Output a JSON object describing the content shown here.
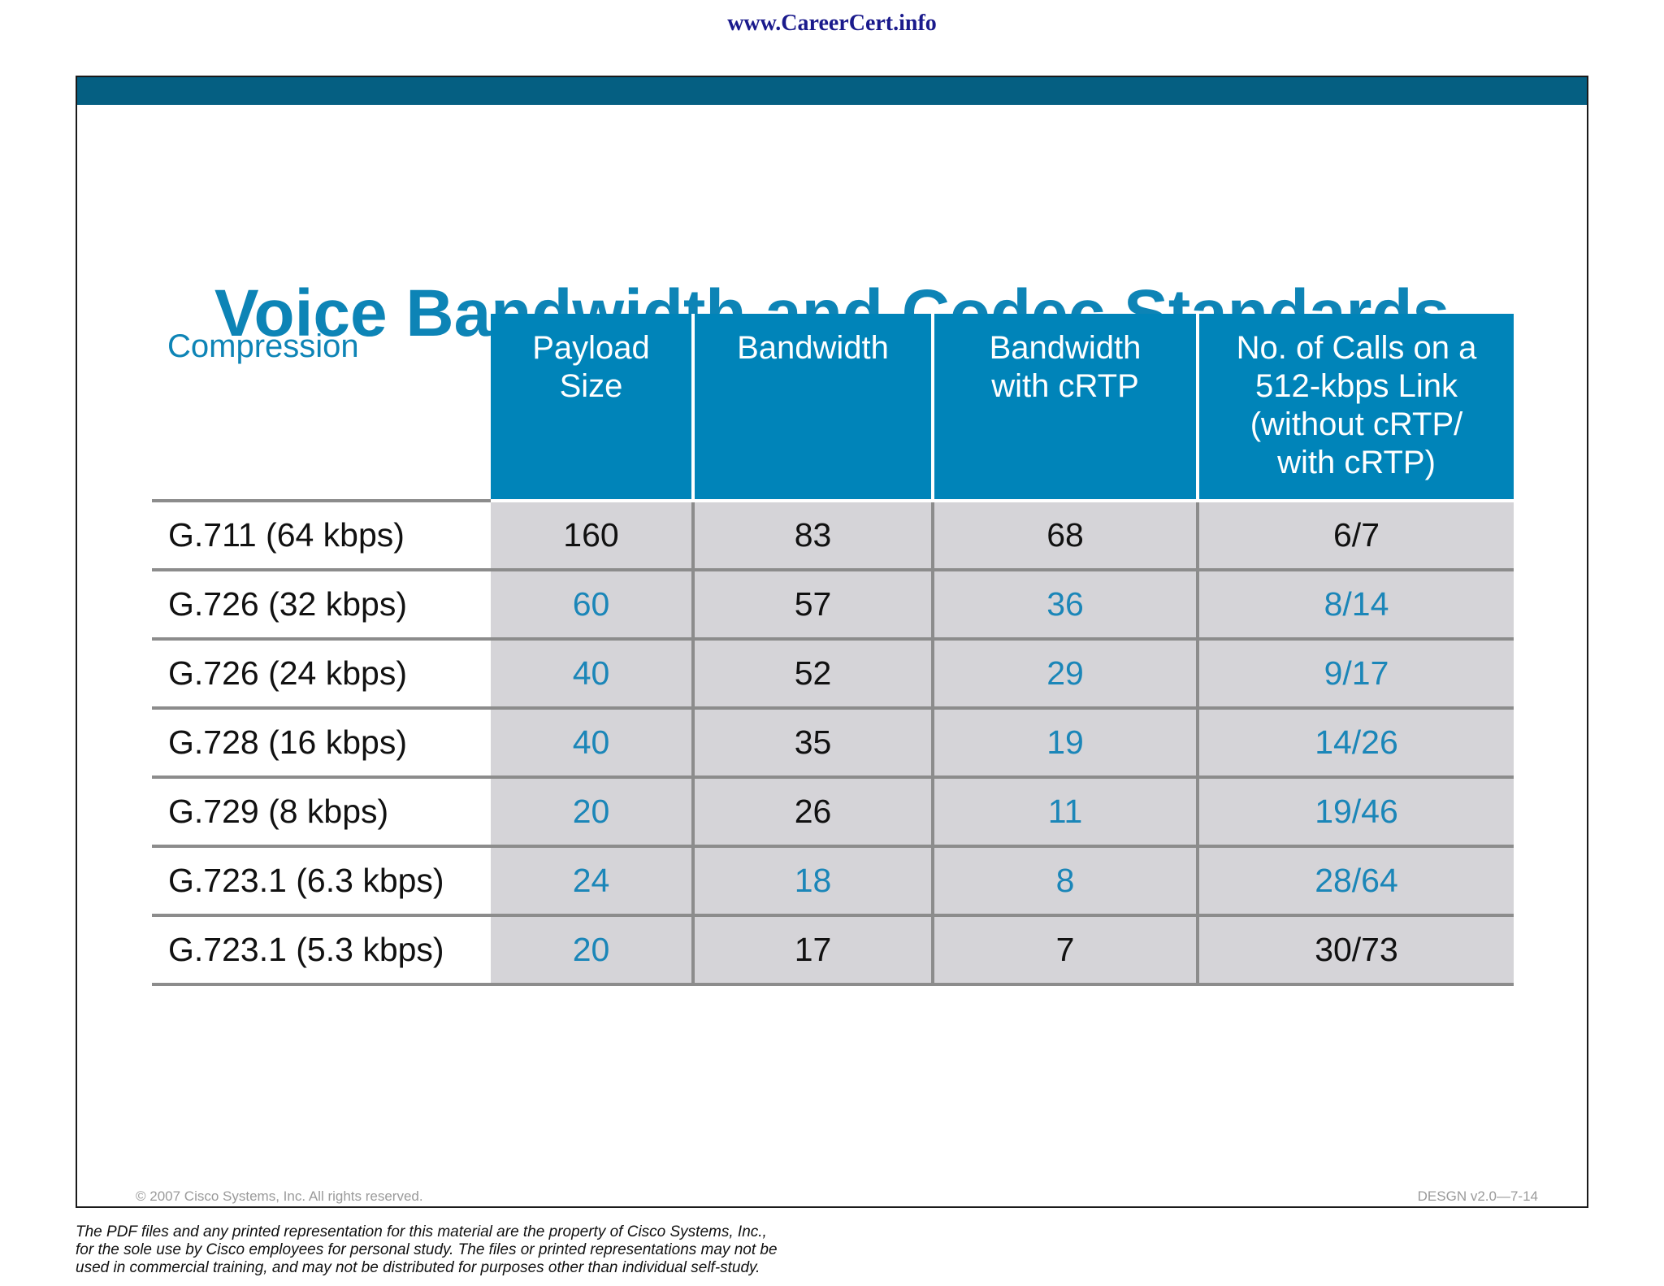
{
  "header": {
    "url": "www.CareerCert.info"
  },
  "slide": {
    "title": "Voice Bandwidth and Codec Standards",
    "copyright": "© 2007 Cisco Systems, Inc. All rights reserved.",
    "slide_id": "DESGN v2.0—7-14"
  },
  "table": {
    "corner_label": "Compression",
    "columns": [
      [
        "Payload",
        "Size"
      ],
      [
        "Bandwidth"
      ],
      [
        "Bandwidth",
        "with cRTP"
      ],
      [
        "No. of Calls on a",
        "512-kbps Link",
        "(without cRTP/",
        "with cRTP)"
      ]
    ],
    "rows": [
      {
        "label": "G.711 (64 kbps)",
        "values": [
          "160",
          "83",
          "68",
          "6/7"
        ]
      },
      {
        "label": "G.726 (32 kbps)",
        "values": [
          "60",
          "57",
          "36",
          "8/14"
        ]
      },
      {
        "label": "G.726 (24 kbps)",
        "values": [
          "40",
          "52",
          "29",
          "9/17"
        ]
      },
      {
        "label": "G.728 (16 kbps)",
        "values": [
          "40",
          "35",
          "19",
          "14/26"
        ]
      },
      {
        "label": "G.729 (8 kbps)",
        "values": [
          "20",
          "26",
          "11",
          "19/46"
        ]
      },
      {
        "label": "G.723.1 (6.3 kbps)",
        "values": [
          "24",
          "18",
          "8",
          "28/64"
        ]
      },
      {
        "label": "G.723.1 (5.3 kbps)",
        "values": [
          "20",
          "17",
          "7",
          "30/73"
        ]
      }
    ],
    "colors": {
      "highlight": "#1b86b8",
      "normal": "#111111",
      "header_bg": "#0084b9",
      "cell_bg": "#d5d4d8"
    }
  },
  "footer": {
    "disclaimer": [
      "The PDF files and any printed representation for this material are the property of Cisco Systems, Inc.,",
      "for the sole use by Cisco employees for personal study. The files or printed representations may not be",
      "used in commercial training, and may not be distributed for purposes other than individual self-study."
    ]
  }
}
